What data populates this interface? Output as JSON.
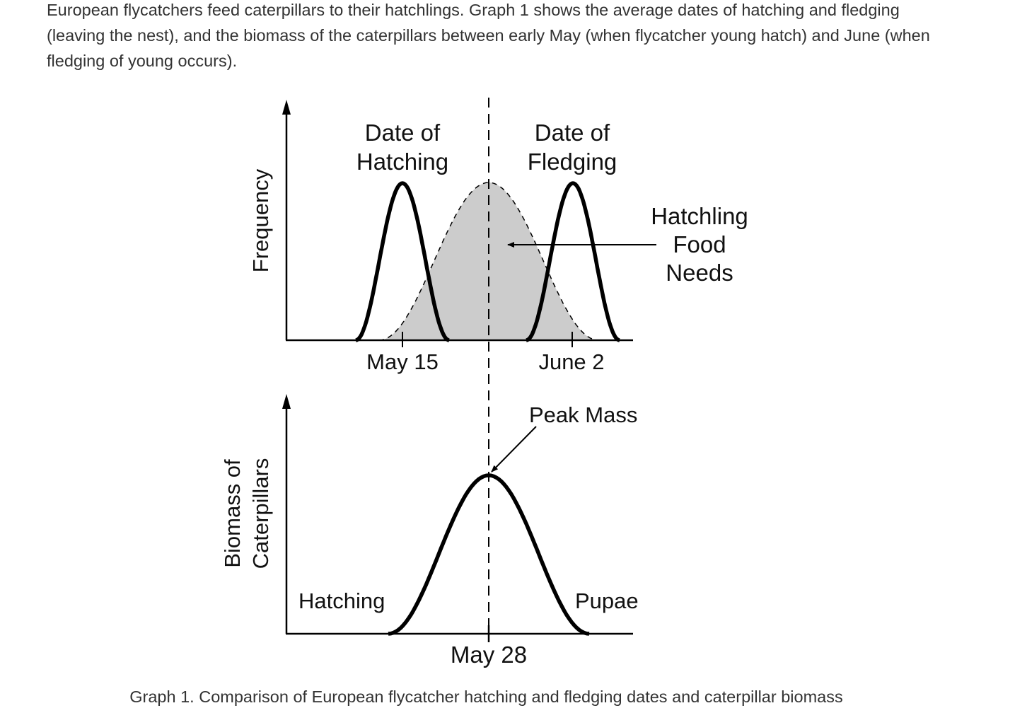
{
  "intro_text": "European flycatchers feed caterpillars to their hatchlings. Graph 1 shows the average dates of hatching and fledging (leaving the nest), and the biomass of the caterpillars between early May (when flycatcher young hatch) and June (when fledging of young occurs).",
  "graph": {
    "top": {
      "y_axis_label": "Frequency",
      "hatching_label": [
        "Date of",
        "Hatching"
      ],
      "fledging_label": [
        "Date of",
        "Fledging"
      ],
      "food_label": [
        "Hatchling",
        "Food",
        "Needs"
      ],
      "tick_labels": [
        "May 15",
        "June 2"
      ]
    },
    "bottom": {
      "y_axis_label": [
        "Biomass of",
        "Caterpillars"
      ],
      "peak_label": "Peak Mass",
      "left_label": "Hatching",
      "right_label": "Pupae",
      "tick_label": "May 28"
    },
    "colors": {
      "curve": "#000000",
      "food_fill": "#cccccc"
    }
  },
  "caption": "Graph 1. Comparison of European flycatcher hatching and fledging dates and caterpillar biomass"
}
